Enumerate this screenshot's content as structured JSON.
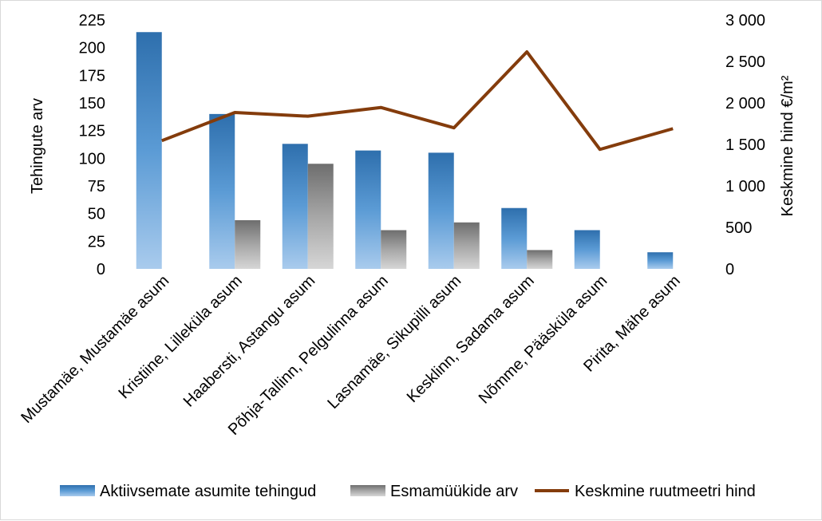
{
  "chart_data": {
    "type": "bar",
    "categories": [
      "Mustamäe, Mustamäe asum",
      "Kristiine, Lilleküla asum",
      "Haabersti, Astangu asum",
      "Põhja-Tallinn, Pelgulinna asum",
      "Lasnamäe, Sikupilli asum",
      "Kesklinn, Sadama asum",
      "Nõmme, Pääsküla asum",
      "Pirita, Mähe asum"
    ],
    "series": [
      {
        "name": "Aktiivsemate asumite tehingud",
        "type": "bar",
        "axis": "left",
        "color": "#2e75b6",
        "values": [
          214,
          140,
          113,
          107,
          105,
          55,
          35,
          15
        ]
      },
      {
        "name": "Esmamüükide arv",
        "type": "bar",
        "axis": "left",
        "color": "#808080",
        "values": [
          0,
          44,
          95,
          35,
          42,
          17,
          0,
          0
        ]
      },
      {
        "name": "Keskmine ruutmeetri hind",
        "type": "line",
        "axis": "right",
        "color": "#843c0c",
        "values": [
          1545,
          1885,
          1840,
          1945,
          1700,
          2615,
          1440,
          1690
        ]
      }
    ],
    "ylabel": "Tehingute arv",
    "y2label": "Keskmine hind €/m²",
    "ylim": [
      0,
      225
    ],
    "y2lim": [
      0,
      3000
    ],
    "yticks": [
      "0",
      "25",
      "50",
      "75",
      "100",
      "125",
      "150",
      "175",
      "200",
      "225"
    ],
    "y2ticks": [
      "0",
      "500",
      "1 000",
      "1 500",
      "2 000",
      "2 500",
      "3 000"
    ],
    "grid": false,
    "legend_position": "bottom"
  }
}
